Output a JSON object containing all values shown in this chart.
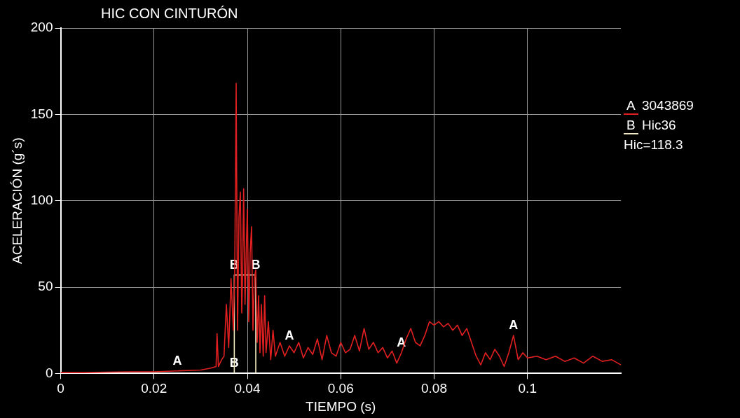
{
  "chart_data": {
    "type": "line",
    "title": "HIC CON CINTURÓN",
    "xlabel": "TIEMPO (s)",
    "ylabel": "ACELERACIÓN (g´s)",
    "xlim": [
      0,
      0.12
    ],
    "xticks": [
      0,
      0.02,
      0.04,
      0.06,
      0.08,
      0.1
    ],
    "ylim": [
      0,
      200
    ],
    "yticks": [
      0,
      50,
      100,
      150,
      200
    ],
    "grid": true,
    "legend": "right",
    "marker": "none",
    "series": [
      {
        "name": "A 3043869",
        "color": "#e02020",
        "x": [
          0,
          0.005,
          0.01,
          0.015,
          0.02,
          0.025,
          0.03,
          0.032,
          0.0333,
          0.0335,
          0.0338,
          0.0345,
          0.035,
          0.0355,
          0.036,
          0.0365,
          0.037,
          0.0373,
          0.0376,
          0.0379,
          0.0382,
          0.0385,
          0.0388,
          0.039,
          0.0392,
          0.0395,
          0.0398,
          0.04,
          0.0403,
          0.0406,
          0.0409,
          0.0412,
          0.0415,
          0.0418,
          0.0421,
          0.0424,
          0.0427,
          0.043,
          0.0434,
          0.0437,
          0.044,
          0.0445,
          0.045,
          0.0455,
          0.046,
          0.047,
          0.048,
          0.049,
          0.05,
          0.051,
          0.052,
          0.053,
          0.054,
          0.055,
          0.056,
          0.057,
          0.058,
          0.059,
          0.06,
          0.061,
          0.062,
          0.063,
          0.064,
          0.065,
          0.066,
          0.067,
          0.068,
          0.069,
          0.07,
          0.071,
          0.072,
          0.073,
          0.074,
          0.075,
          0.076,
          0.077,
          0.078,
          0.079,
          0.08,
          0.081,
          0.082,
          0.083,
          0.084,
          0.085,
          0.086,
          0.087,
          0.088,
          0.089,
          0.09,
          0.091,
          0.092,
          0.093,
          0.094,
          0.095,
          0.096,
          0.097,
          0.098,
          0.099,
          0.1,
          0.102,
          0.104,
          0.106,
          0.108,
          0.11,
          0.112,
          0.114,
          0.116,
          0.118,
          0.12
        ],
        "values": [
          0.5,
          0.5,
          0.8,
          1,
          1,
          1.5,
          2,
          3,
          4,
          23,
          4,
          8,
          10,
          40,
          15,
          55,
          25,
          60,
          168,
          25,
          90,
          105,
          35,
          60,
          107,
          40,
          75,
          95,
          30,
          70,
          85,
          25,
          55,
          60,
          18,
          45,
          12,
          40,
          10,
          45,
          12,
          30,
          8,
          25,
          10,
          18,
          10,
          16,
          12,
          18,
          9,
          15,
          11,
          20,
          8,
          22,
          12,
          10,
          18,
          12,
          14,
          22,
          13,
          26,
          14,
          18,
          12,
          15,
          9,
          13,
          6,
          12,
          20,
          26,
          18,
          16,
          22,
          30,
          28,
          30,
          27,
          29,
          25,
          28,
          22,
          26,
          18,
          10,
          5,
          12,
          8,
          14,
          10,
          4,
          12,
          22,
          8,
          12,
          9,
          10,
          8,
          10,
          7,
          9,
          6,
          10,
          7,
          8,
          5
        ]
      },
      {
        "name": "B Hic36",
        "color": "#f0e8c0",
        "x": [
          0.0372,
          0.0372,
          0.0418,
          0.0418
        ],
        "values": [
          0,
          57,
          57,
          0
        ]
      }
    ],
    "annotations": [
      {
        "text": "A",
        "x": 0.025,
        "y": 1.5
      },
      {
        "text": "A",
        "x": 0.049,
        "y": 16
      },
      {
        "text": "A",
        "x": 0.073,
        "y": 12
      },
      {
        "text": "A",
        "x": 0.097,
        "y": 22
      },
      {
        "text": "B",
        "x": 0.0372,
        "y": 57
      },
      {
        "text": "B",
        "x": 0.0418,
        "y": 57
      },
      {
        "text": "B",
        "x": 0.0372,
        "y": 0
      },
      "Hic=118.3"
    ]
  }
}
